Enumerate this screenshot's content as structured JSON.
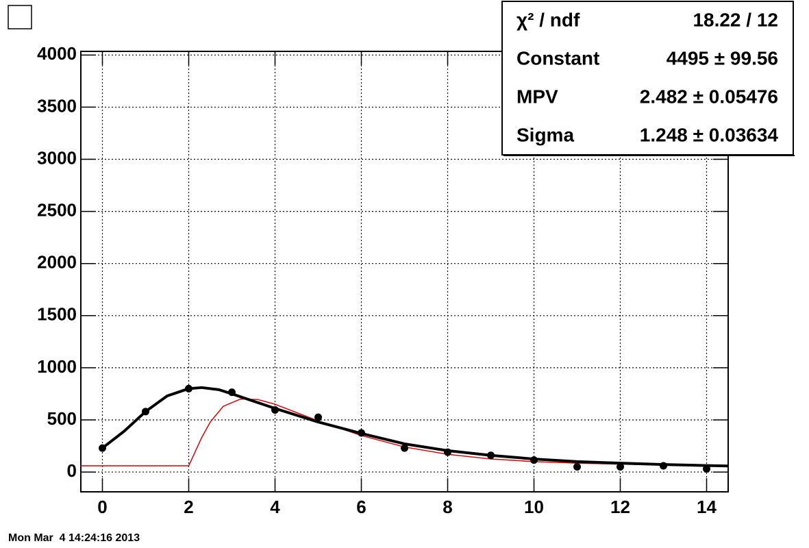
{
  "chart_data": {
    "type": "scatter",
    "xlim": [
      -0.5,
      14.5
    ],
    "ylim": [
      -190,
      4035
    ],
    "xticks": [
      0,
      2,
      4,
      6,
      8,
      10,
      12,
      14
    ],
    "yticks": [
      0,
      500,
      1000,
      1500,
      2000,
      2500,
      3000,
      3500,
      4000
    ],
    "grid": true,
    "series": [
      {
        "style": "markers",
        "color": "#000000",
        "x": [
          0,
          1,
          2,
          3,
          4,
          5,
          6,
          7,
          8,
          9,
          10,
          11,
          12,
          13,
          14
        ],
        "values": [
          230,
          580,
          800,
          765,
          595,
          525,
          375,
          230,
          190,
          160,
          115,
          50,
          50,
          60,
          30
        ]
      },
      {
        "style": "line",
        "color": "#000000",
        "width": 4,
        "x": [
          0,
          0.5,
          1,
          1.5,
          2,
          2.3,
          2.7,
          3,
          3.5,
          4,
          5,
          6,
          7,
          8,
          9,
          10,
          11,
          12,
          13,
          14,
          14.5
        ],
        "values": [
          230,
          390,
          580,
          730,
          800,
          810,
          790,
          750,
          680,
          610,
          480,
          370,
          270,
          205,
          160,
          125,
          100,
          85,
          72,
          62,
          58
        ]
      },
      {
        "style": "line",
        "color": "#e00000",
        "width": 1.5,
        "x": [
          -0.5,
          2,
          2.1,
          2.3,
          2.5,
          2.8,
          3.2,
          3.6,
          4,
          5,
          6,
          7,
          8,
          9,
          10,
          11,
          12,
          13,
          14,
          14.5
        ],
        "values": [
          60,
          60,
          150,
          330,
          480,
          630,
          700,
          695,
          650,
          490,
          350,
          240,
          170,
          125,
          100,
          85,
          75,
          68,
          62,
          60
        ]
      }
    ],
    "stats": [
      {
        "label": "χ² / ndf",
        "value": "18.22 / 12"
      },
      {
        "label": "Constant",
        "value": "4495 ± 99.56"
      },
      {
        "label": "MPV",
        "value": "2.482 ± 0.05476"
      },
      {
        "label": "Sigma",
        "value": "1.248 ± 0.03634"
      }
    ],
    "date": "Mon Mar  4 14:24:16 2013"
  }
}
